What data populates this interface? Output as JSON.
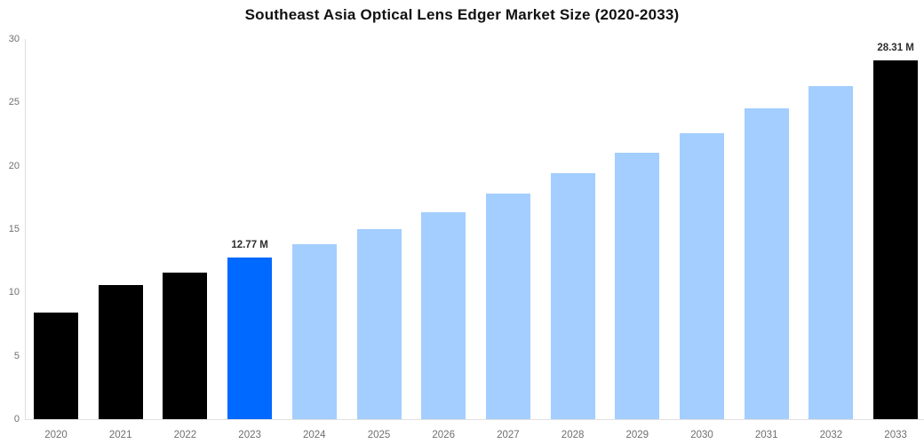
{
  "chart_data": {
    "type": "bar",
    "title": "Southeast Asia Optical Lens Edger Market Size (2020-2033)",
    "categories": [
      "2020",
      "2021",
      "2022",
      "2023",
      "2024",
      "2025",
      "2026",
      "2027",
      "2028",
      "2029",
      "2030",
      "2031",
      "2032",
      "2033"
    ],
    "values": [
      8.4,
      10.6,
      11.6,
      12.77,
      13.8,
      15.0,
      16.3,
      17.8,
      19.4,
      21.0,
      22.6,
      24.5,
      26.3,
      28.31
    ],
    "unit": "M",
    "point_labels": {
      "3": "12.77 M",
      "13": "28.31 M"
    },
    "bar_colors": [
      "#000000",
      "#000000",
      "#000000",
      "#0069ff",
      "#a3ceff",
      "#a3ceff",
      "#a3ceff",
      "#a3ceff",
      "#a3ceff",
      "#a3ceff",
      "#a3ceff",
      "#a3ceff",
      "#a3ceff",
      "#000000"
    ],
    "xlabel": "",
    "ylabel": "",
    "ylim": [
      0,
      30
    ],
    "yticks": [
      0,
      5,
      10,
      15,
      20,
      25,
      30
    ],
    "grid": false,
    "legend": "none"
  },
  "colors": {
    "historic_black": "#000000",
    "highlight_blue": "#0069ff",
    "forecast_blue": "#a3ceff",
    "axis_line": "#e0e0e0",
    "tick_text": "#6f6f6f",
    "point_label_text": "#2e2e2e",
    "title_text": "#111111",
    "background": "#ffffff"
  }
}
